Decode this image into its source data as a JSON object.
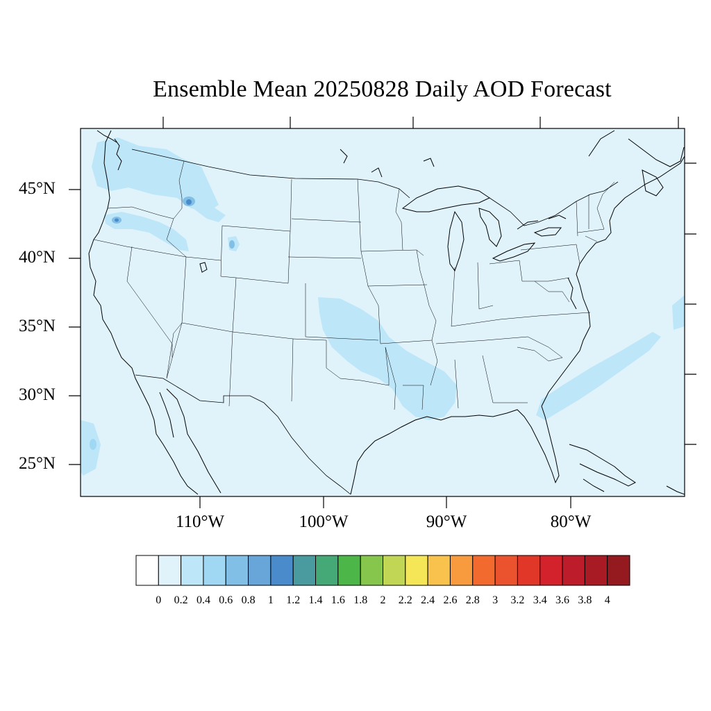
{
  "title": "Ensemble Mean 20250828 Daily AOD Forecast",
  "lat_labels": [
    "45°N",
    "40°N",
    "35°N",
    "30°N",
    "25°N"
  ],
  "lon_labels": [
    "110°W",
    "100°W",
    "90°W",
    "80°W"
  ],
  "colorbar": {
    "colors": [
      "#ffffff",
      "#e0f3fb",
      "#bde6f8",
      "#a0d8f4",
      "#82bfe6",
      "#68a6da",
      "#4a8ccb",
      "#4a9ba0",
      "#45a877",
      "#4db648",
      "#86c64c",
      "#c2d655",
      "#f5e658",
      "#f9c24c",
      "#f89a3e",
      "#f26a2d",
      "#ea532d",
      "#e03729",
      "#d3222c",
      "#bd1c2a",
      "#a81b25",
      "#941a1f"
    ],
    "labels": [
      "0",
      "0.2",
      "0.4",
      "0.6",
      "0.8",
      "1",
      "1.2",
      "1.4",
      "1.6",
      "1.8",
      "2",
      "2.2",
      "2.4",
      "2.6",
      "2.8",
      "3",
      "3.2",
      "3.4",
      "3.6",
      "3.8",
      "4"
    ]
  }
}
